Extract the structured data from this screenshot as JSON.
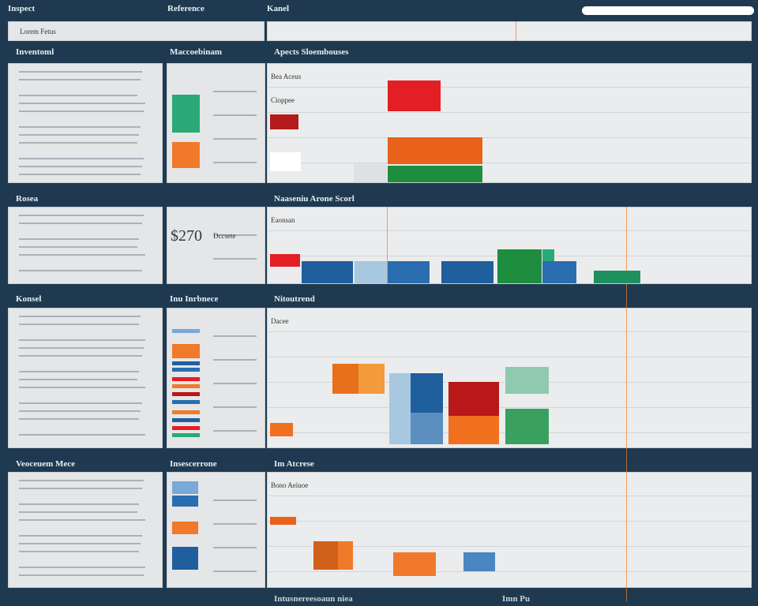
{
  "header": {
    "nav": [
      "Inspect",
      "Reference",
      "Kanel"
    ],
    "filter": "Lorem Fetus"
  },
  "sections": [
    {
      "title": "Inventoml",
      "legend_title": "Maccoebinam",
      "chart_title": "Apects Sloembouses",
      "chart_labels": [
        "Bea Aceus",
        "Cioppee"
      ]
    },
    {
      "title": "Rosea",
      "legend_title": "$270",
      "legend_caption": "Dccsete",
      "chart_title": "Naaseniu Arone Scorl",
      "chart_labels": [
        "Eaonsan"
      ]
    },
    {
      "title": "Konsel",
      "legend_title": "Inu Inrbnece",
      "chart_title": "Nitoutrend",
      "chart_labels": [
        "Dacee"
      ]
    },
    {
      "title": "Veoceuem Mece",
      "legend_title": "Insescerrone",
      "chart_title": "Im Atcrese",
      "chart_labels": [
        "Bono Aeiuoe"
      ],
      "footer": [
        "Intusnereesoaun niea",
        "Imn Pu"
      ]
    }
  ]
}
